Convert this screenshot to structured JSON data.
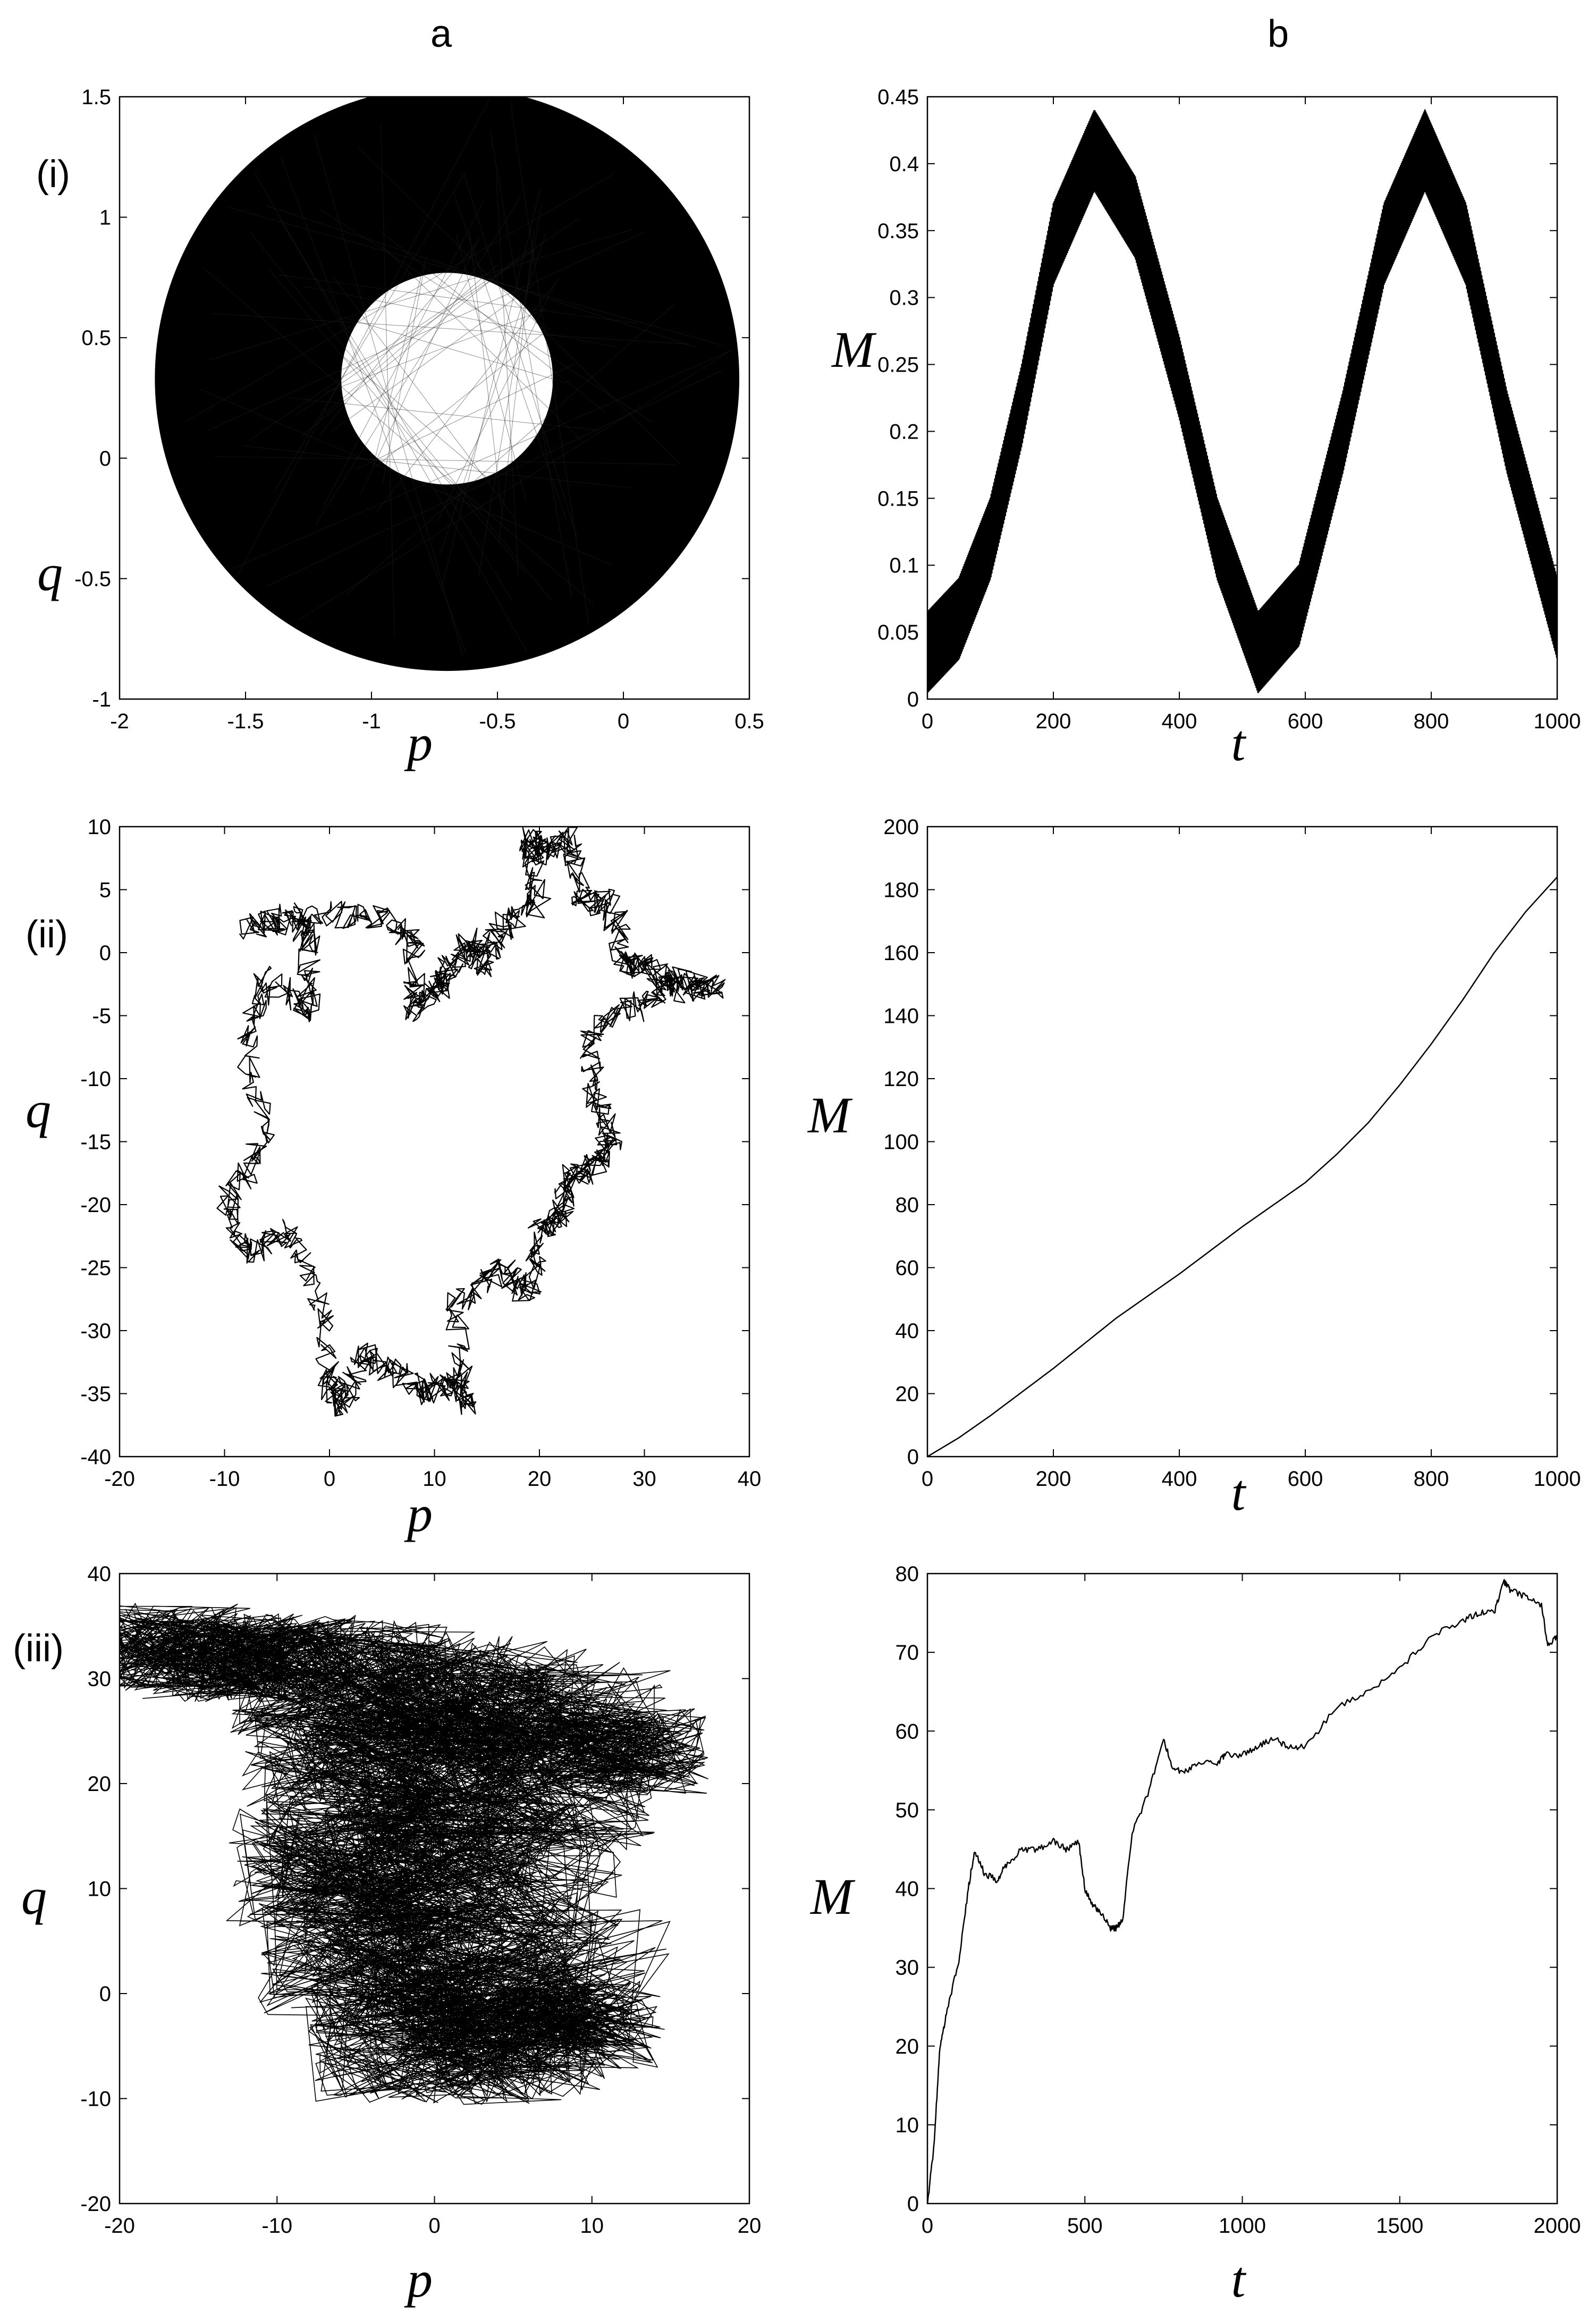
{
  "column_labels": [
    "a",
    "b"
  ],
  "row_labels": [
    "(i)",
    "(ii)",
    "(iii)"
  ],
  "colors": {
    "ink": "#000000",
    "background": "#ffffff"
  },
  "chart_data": [
    {
      "id": "a-i",
      "type": "scatter",
      "xlabel": "p",
      "ylabel": "q",
      "xlim": [
        -2,
        0.5
      ],
      "ylim": [
        -1,
        1.5
      ],
      "xticks": [
        "-2",
        "-1.5",
        "-1",
        "-0.5",
        "0",
        "0.5"
      ],
      "yticks": [
        "-1",
        "-0.5",
        "0",
        "0.5",
        "1",
        "1.5"
      ],
      "annulus": {
        "center": [
          -0.7,
          0.33
        ],
        "inner_radius": 0.42,
        "outer_radius": 1.16
      }
    },
    {
      "id": "b-i",
      "type": "line",
      "xlabel": "t",
      "ylabel": "M",
      "xlim": [
        0,
        1000
      ],
      "ylim": [
        0,
        0.45
      ],
      "xticks": [
        "0",
        "200",
        "400",
        "600",
        "800",
        "1000"
      ],
      "yticks": [
        "0",
        "0.05",
        "0.1",
        "0.15",
        "0.2",
        "0.25",
        "0.3",
        "0.35",
        "0.4",
        "0.45"
      ],
      "series": [
        {
          "x": [
            0,
            50,
            100,
            150,
            200,
            265,
            330,
            400,
            460,
            525,
            590,
            660,
            725,
            790,
            855,
            920,
            1000
          ],
          "y": [
            0.035,
            0.06,
            0.12,
            0.22,
            0.34,
            0.41,
            0.36,
            0.24,
            0.12,
            0.035,
            0.07,
            0.2,
            0.34,
            0.41,
            0.34,
            0.2,
            0.06
          ]
        }
      ],
      "oscillation_amplitude": 0.03
    },
    {
      "id": "a-ii",
      "type": "scatter",
      "xlabel": "p",
      "ylabel": "q",
      "xlim": [
        -20,
        40
      ],
      "ylim": [
        -40,
        10
      ],
      "xticks": [
        "-20",
        "-10",
        "0",
        "10",
        "20",
        "30",
        "40"
      ],
      "yticks": [
        "-40",
        "-35",
        "-30",
        "-25",
        "-20",
        "-15",
        "-10",
        "-5",
        "0",
        "5",
        "10"
      ],
      "path": [
        [
          -8,
          2
        ],
        [
          -3,
          3
        ],
        [
          -2,
          1
        ],
        [
          -2,
          -5
        ],
        [
          -6,
          -2
        ],
        [
          -8,
          -7
        ],
        [
          -6,
          -15
        ],
        [
          -10,
          -20
        ],
        [
          -8,
          -24
        ],
        [
          -4,
          -22
        ],
        [
          -1,
          -27
        ],
        [
          0,
          -34
        ],
        [
          1,
          -36
        ],
        [
          3,
          -32
        ],
        [
          6,
          -33
        ],
        [
          9,
          -35
        ],
        [
          12,
          -34
        ],
        [
          13,
          -36
        ],
        [
          12,
          -28
        ],
        [
          16,
          -25
        ],
        [
          19,
          -27
        ],
        [
          20,
          -22
        ],
        [
          22,
          -21
        ],
        [
          23,
          -18
        ],
        [
          25,
          -17
        ],
        [
          27,
          -15
        ],
        [
          25,
          -11
        ],
        [
          25,
          -6
        ],
        [
          30,
          -4
        ],
        [
          33,
          -2
        ],
        [
          37,
          -3
        ],
        [
          33,
          -3
        ],
        [
          30,
          -1
        ],
        [
          28,
          -1
        ],
        [
          27,
          4
        ],
        [
          24,
          4
        ],
        [
          23,
          9
        ],
        [
          20,
          8
        ],
        [
          19,
          9
        ],
        [
          20,
          4
        ],
        [
          16,
          2
        ],
        [
          15,
          -1
        ],
        [
          13,
          1
        ],
        [
          11,
          -2
        ],
        [
          10,
          -3
        ],
        [
          8,
          -5
        ],
        [
          8,
          1
        ],
        [
          5,
          3
        ],
        [
          0,
          3
        ],
        [
          -8,
          2
        ]
      ]
    },
    {
      "id": "b-ii",
      "type": "line",
      "xlabel": "t",
      "ylabel": "M",
      "xlim": [
        0,
        1000
      ],
      "ylim": [
        0,
        200
      ],
      "xticks": [
        "0",
        "200",
        "400",
        "600",
        "800",
        "1000"
      ],
      "yticks": [
        "0",
        "20",
        "40",
        "60",
        "80",
        "100",
        "120",
        "140",
        "160",
        "180",
        "200"
      ],
      "series": [
        {
          "x": [
            0,
            50,
            100,
            200,
            300,
            400,
            500,
            600,
            650,
            700,
            750,
            800,
            850,
            900,
            950,
            1000
          ],
          "y": [
            0,
            6,
            13,
            28,
            44,
            58,
            73,
            87,
            96,
            106,
            118,
            131,
            145,
            160,
            173,
            184
          ]
        }
      ]
    },
    {
      "id": "a-iii",
      "type": "scatter",
      "xlabel": "p",
      "ylabel": "q",
      "xlim": [
        -20,
        20
      ],
      "ylim": [
        -20,
        40
      ],
      "xticks": [
        "-20",
        "-10",
        "0",
        "10",
        "20"
      ],
      "yticks": [
        "-20",
        "-10",
        "0",
        "10",
        "20",
        "30",
        "40"
      ],
      "cloud": [
        [
          -17,
          33,
          3
        ],
        [
          -14,
          32,
          3
        ],
        [
          -10,
          32,
          3
        ],
        [
          -6,
          30,
          4
        ],
        [
          -2,
          29,
          4
        ],
        [
          3,
          28,
          4
        ],
        [
          8,
          26,
          4
        ],
        [
          12,
          23,
          3
        ],
        [
          -5,
          22,
          4
        ],
        [
          0,
          21,
          5
        ],
        [
          5,
          20,
          5
        ],
        [
          -6,
          12,
          4
        ],
        [
          -2,
          12,
          5
        ],
        [
          3,
          12,
          5
        ],
        [
          -4,
          3,
          4
        ],
        [
          1,
          2,
          5
        ],
        [
          6,
          1,
          5
        ],
        [
          -1,
          -5,
          4
        ],
        [
          4,
          -5,
          4
        ],
        [
          9,
          -3,
          3
        ]
      ]
    },
    {
      "id": "b-iii",
      "type": "line",
      "xlabel": "t",
      "ylabel": "M",
      "xlim": [
        0,
        2000
      ],
      "ylim": [
        0,
        80
      ],
      "xticks": [
        "0",
        "500",
        "1000",
        "1500",
        "2000"
      ],
      "yticks": [
        "0",
        "10",
        "20",
        "30",
        "40",
        "50",
        "60",
        "70",
        "80"
      ],
      "series": [
        {
          "x": [
            0,
            20,
            40,
            60,
            100,
            130,
            150,
            180,
            220,
            250,
            300,
            350,
            400,
            440,
            480,
            500,
            520,
            550,
            580,
            600,
            620,
            650,
            700,
            750,
            780,
            820,
            870,
            920,
            950,
            1000,
            1050,
            1100,
            1150,
            1200,
            1300,
            1400,
            1500,
            1600,
            1700,
            1750,
            1800,
            1830,
            1850,
            1900,
            1950,
            1970,
            2000
          ],
          "y": [
            0,
            7,
            20,
            24,
            31,
            40,
            45,
            42,
            41,
            43,
            45,
            45,
            46,
            45,
            46,
            40,
            38,
            37,
            35,
            35,
            36,
            47,
            52,
            59,
            55,
            55,
            56,
            56,
            57,
            57,
            58,
            59,
            58,
            58,
            63,
            65,
            68,
            72,
            74,
            75,
            75,
            79,
            78,
            77,
            76,
            71,
            72
          ]
        }
      ]
    }
  ]
}
